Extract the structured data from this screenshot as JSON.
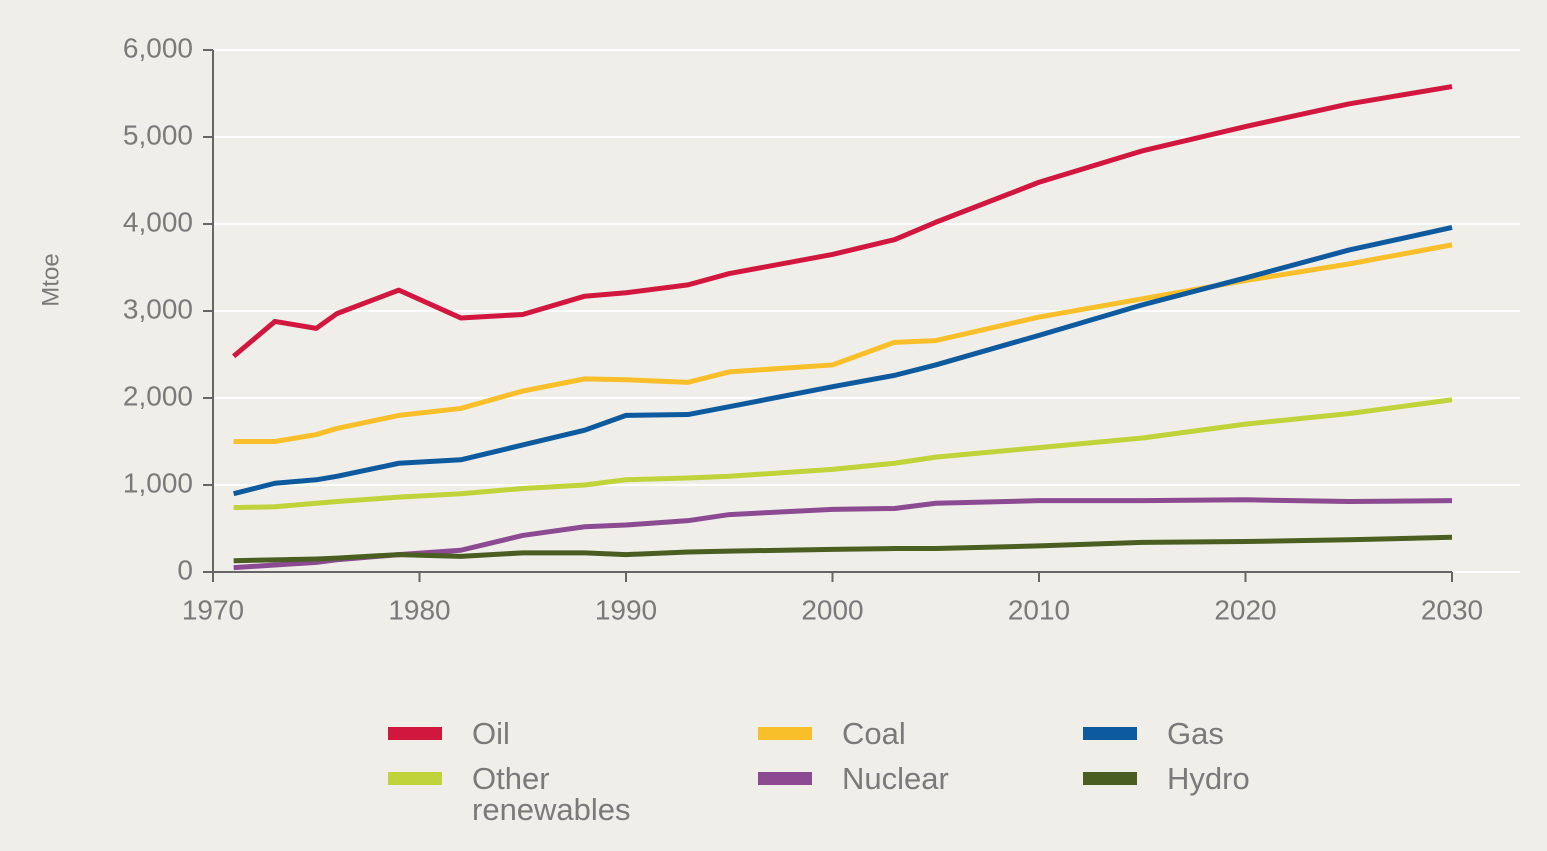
{
  "chart_data": {
    "type": "line",
    "ylabel": "Mtoe",
    "x": [
      1971,
      1973,
      1975,
      1976,
      1979,
      1982,
      1985,
      1988,
      1990,
      1993,
      1995,
      2000,
      2003,
      2005,
      2010,
      2015,
      2020,
      2025,
      2030
    ],
    "series": [
      {
        "name": "Oil",
        "color": "#d2173f",
        "values": [
          2480,
          2880,
          2800,
          2970,
          3240,
          2920,
          2960,
          3170,
          3210,
          3300,
          3430,
          3650,
          3820,
          4020,
          4480,
          4840,
          5120,
          5380,
          5580
        ]
      },
      {
        "name": "Coal",
        "color": "#f9bf2a",
        "values": [
          1500,
          1500,
          1580,
          1650,
          1800,
          1880,
          2080,
          2220,
          2210,
          2180,
          2300,
          2380,
          2640,
          2660,
          2930,
          3140,
          3350,
          3540,
          3760
        ]
      },
      {
        "name": "Gas",
        "color": "#0d5a9e",
        "values": [
          900,
          1020,
          1060,
          1100,
          1250,
          1290,
          1460,
          1630,
          1800,
          1810,
          1900,
          2130,
          2260,
          2380,
          2720,
          3070,
          3380,
          3700,
          3960
        ]
      },
      {
        "name": "Other renewables",
        "color": "#bfd43a",
        "values": [
          740,
          750,
          790,
          810,
          860,
          900,
          960,
          1000,
          1060,
          1080,
          1100,
          1180,
          1250,
          1320,
          1430,
          1540,
          1700,
          1820,
          1980
        ]
      },
      {
        "name": "Nuclear",
        "color": "#8b4a92",
        "values": [
          50,
          80,
          110,
          140,
          200,
          250,
          420,
          520,
          540,
          590,
          660,
          720,
          730,
          790,
          820,
          820,
          830,
          810,
          820
        ]
      },
      {
        "name": "Hydro",
        "color": "#4a5e22",
        "values": [
          130,
          140,
          150,
          160,
          200,
          180,
          220,
          220,
          200,
          230,
          240,
          260,
          270,
          270,
          300,
          340,
          350,
          370,
          400
        ]
      }
    ],
    "xlim": [
      1970,
      2030
    ],
    "xticks": [
      1970,
      1980,
      1990,
      2000,
      2010,
      2020,
      2030
    ],
    "ylim": [
      0,
      6000
    ],
    "yticks": [
      0,
      {
        "value": 1000,
        "label": "1,000"
      },
      {
        "value": 2000,
        "label": "2,000"
      },
      {
        "value": 3000,
        "label": "3,000"
      },
      {
        "value": 4000,
        "label": "4,000"
      },
      {
        "value": 5000,
        "label": "5,000"
      },
      {
        "value": 6000,
        "label": "6,000"
      }
    ],
    "grid": true
  }
}
